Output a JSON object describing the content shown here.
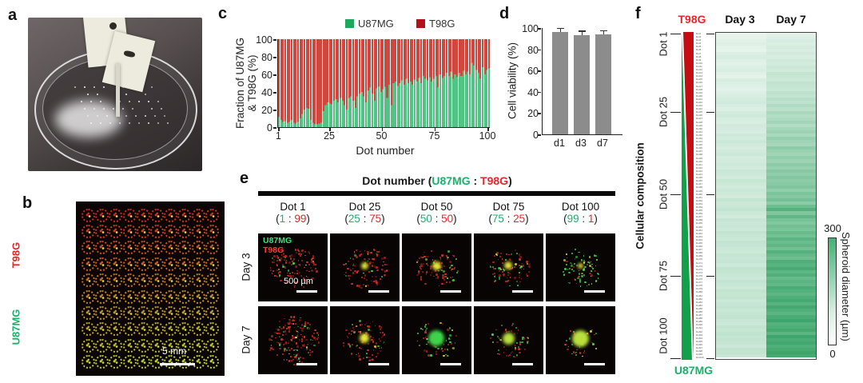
{
  "figure": {
    "panel_labels": {
      "a": "a",
      "b": "b",
      "c": "c",
      "d": "d",
      "e": "e",
      "f": "f"
    }
  },
  "colors": {
    "u87mg_text": "#19b26b",
    "t98g_text": "#e8262a",
    "bar_green": "#53c285",
    "bar_red": "#cf4840",
    "legend_green": "#1fa75c",
    "legend_red": "#b01217",
    "gray_bar": "#8c8c8c",
    "heat_green": "#3fae6e",
    "comp_green": "#12a04a",
    "comp_red": "#c40d12"
  },
  "panel_b": {
    "label_top": "T98G",
    "label_bottom": "U87MG",
    "scale_bar": "5 mm"
  },
  "panel_c": {
    "ylabel_line1": "Fraction of U87MG",
    "ylabel_line2": "& T98G (%)",
    "xlabel": "Dot number",
    "legend": [
      {
        "name": "U87MG"
      },
      {
        "name": "T98G"
      }
    ],
    "yticks": [
      "100",
      "80",
      "60",
      "40",
      "20",
      "0"
    ],
    "xticks": [
      "1",
      "25",
      "50",
      "75",
      "100"
    ]
  },
  "panel_d": {
    "ylabel": "Cell viability (%)",
    "yticks": [
      "100",
      "80",
      "60",
      "40",
      "20",
      "0"
    ],
    "categories": [
      "d1",
      "d3",
      "d7"
    ]
  },
  "panel_e": {
    "title_prefix": "Dot number (",
    "title_green": "U87MG",
    "title_sep": " : ",
    "title_red": "T98G",
    "title_suffix": ")",
    "ratio_open": "(",
    "ratio_sep": " : ",
    "ratio_close": ")",
    "row_labels": [
      "Day 3",
      "Day 7"
    ],
    "columns": [
      {
        "name": "Dot 1",
        "green": "1",
        "red": "99"
      },
      {
        "name": "Dot 25",
        "green": "25",
        "red": "75"
      },
      {
        "name": "Dot 50",
        "green": "50",
        "red": "50"
      },
      {
        "name": "Dot 75",
        "green": "75",
        "red": "25"
      },
      {
        "name": "Dot 100",
        "green": "99",
        "red": "1"
      }
    ],
    "inset": {
      "green": "U87MG",
      "red": "T98G",
      "scale": "500 µm"
    },
    "image_hints": [
      {
        "row": 0,
        "col": 0,
        "red": 85,
        "green": 12,
        "core": "none",
        "coreSize": 0,
        "spread": 30
      },
      {
        "row": 0,
        "col": 1,
        "red": 70,
        "green": 10,
        "core": "yellow",
        "coreSize": 9,
        "spread": 28
      },
      {
        "row": 0,
        "col": 2,
        "red": 55,
        "green": 16,
        "core": "yellow",
        "coreSize": 11,
        "spread": 27
      },
      {
        "row": 0,
        "col": 3,
        "red": 42,
        "green": 22,
        "core": "yellow",
        "coreSize": 10,
        "spread": 26
      },
      {
        "row": 0,
        "col": 4,
        "red": 8,
        "green": 55,
        "core": "yellow",
        "coreSize": 7,
        "spread": 26
      },
      {
        "row": 1,
        "col": 0,
        "red": 100,
        "green": 20,
        "core": "none",
        "coreSize": 0,
        "spread": 33
      },
      {
        "row": 1,
        "col": 1,
        "red": 60,
        "green": 12,
        "core": "yellow",
        "coreSize": 12,
        "spread": 28
      },
      {
        "row": 1,
        "col": 2,
        "red": 22,
        "green": 26,
        "core": "green",
        "coreSize": 20,
        "spread": 26
      },
      {
        "row": 1,
        "col": 3,
        "red": 26,
        "green": 18,
        "core": "yellowgreen",
        "coreSize": 15,
        "spread": 24
      },
      {
        "row": 1,
        "col": 4,
        "red": 16,
        "green": 14,
        "core": "yellowgreen",
        "coreSize": 21,
        "spread": 22
      }
    ]
  },
  "panel_f": {
    "top_label": "T98G",
    "bottom_label": "U87MG",
    "col_headers": [
      "Day 3",
      "Day 7"
    ],
    "side_labels": [
      "Dot 1",
      "Dot 25",
      "Dot 50",
      "Dot 75",
      "Dot 100"
    ],
    "axis_label": "Cellular composition",
    "colorbar": {
      "max": "300",
      "min": "0",
      "label": "Spheroid diameter (µm)"
    }
  },
  "chart_data": [
    {
      "panel": "c",
      "type": "bar",
      "stacked": true,
      "title": "",
      "xlabel": "Dot number",
      "ylabel": "Fraction of U87MG & T98G (%)",
      "x_range": "Dot 1 to Dot 100",
      "ylim": [
        0,
        100
      ],
      "xticks": [
        1,
        25,
        50,
        75,
        100
      ],
      "series": [
        {
          "name": "U87MG (%)",
          "color": "#53c285",
          "values": [
            12,
            8,
            6,
            7,
            5,
            6,
            8,
            5,
            4,
            6,
            10,
            15,
            20,
            22,
            21,
            8,
            5,
            3,
            3,
            4,
            5,
            18,
            25,
            28,
            27,
            26,
            30,
            32,
            28,
            33,
            30,
            25,
            20,
            33,
            35,
            30,
            22,
            35,
            38,
            40,
            35,
            28,
            42,
            45,
            38,
            30,
            44,
            46,
            40,
            43,
            46,
            33,
            48,
            25,
            50,
            52,
            47,
            50,
            53,
            48,
            55,
            50,
            52,
            48,
            54,
            52,
            56,
            50,
            58,
            55,
            53,
            57,
            52,
            55,
            58,
            45,
            60,
            56,
            58,
            62,
            58,
            63,
            55,
            60,
            57,
            62,
            58,
            64,
            60,
            63,
            60,
            73,
            70,
            65,
            62,
            55,
            68,
            60,
            65,
            67
          ]
        },
        {
          "name": "T98G (%)",
          "color": "#cf4840",
          "note": "equals 100 minus the U87MG value for each dot"
        }
      ]
    },
    {
      "panel": "d",
      "type": "bar",
      "categories": [
        "d1",
        "d3",
        "d7"
      ],
      "values": [
        96,
        93,
        94
      ],
      "errors": [
        3,
        3.5,
        3
      ],
      "ylabel": "Cell viability (%)",
      "ylim": [
        0,
        100
      ],
      "bar_color": "#8c8c8c"
    },
    {
      "panel": "f",
      "type": "heatmap",
      "rows": "Dot 1 to Dot 100 (U87MG:T98G ratio runs 1:99 at Dot 1 to 99:1 at Dot 100)",
      "columns": [
        "Day 3",
        "Day 7"
      ],
      "value_label": "Spheroid diameter (µm)",
      "scale": [
        0,
        300
      ],
      "series": [
        {
          "name": "Day 3",
          "values": [
            35,
            40,
            45,
            50,
            42,
            38,
            55,
            60,
            48,
            44,
            52,
            58,
            46,
            40,
            62,
            55,
            48,
            44,
            50,
            58,
            65,
            72,
            60,
            55,
            68,
            75,
            62,
            58,
            70,
            66,
            60,
            74,
            68,
            80,
            72,
            64,
            70,
            78,
            66,
            72,
            75,
            68,
            82,
            76,
            70,
            85,
            78,
            72,
            80,
            74,
            70,
            88,
            76,
            82,
            90,
            78,
            72,
            86,
            80,
            84,
            76,
            90,
            84,
            78,
            92,
            86,
            80,
            74,
            88,
            82,
            86,
            78,
            94,
            88,
            82,
            76,
            90,
            84,
            78,
            92,
            84,
            90,
            78,
            86,
            92,
            80,
            88,
            94,
            82,
            76,
            90,
            84,
            96,
            88,
            92,
            86,
            80,
            94,
            90,
            85
          ]
        },
        {
          "name": "Day 7",
          "values": [
            45,
            50,
            60,
            55,
            65,
            58,
            70,
            62,
            75,
            68,
            80,
            72,
            90,
            85,
            78,
            95,
            88,
            82,
            100,
            92,
            110,
            98,
            120,
            105,
            130,
            115,
            125,
            140,
            118,
            135,
            150,
            128,
            160,
            145,
            135,
            170,
            155,
            142,
            165,
            150,
            175,
            158,
            185,
            168,
            190,
            172,
            180,
            195,
            165,
            200,
            185,
            210,
            175,
            220,
            260,
            195,
            240,
            205,
            190,
            215,
            200,
            230,
            210,
            250,
            225,
            240,
            215,
            260,
            235,
            220,
            270,
            255,
            280,
            245,
            265,
            230,
            250,
            240,
            275,
            260,
            245,
            270,
            285,
            255,
            290,
            265,
            250,
            275,
            295,
            260,
            270,
            285,
            250,
            295,
            275,
            290,
            265,
            280,
            298,
            285
          ]
        }
      ]
    }
  ]
}
